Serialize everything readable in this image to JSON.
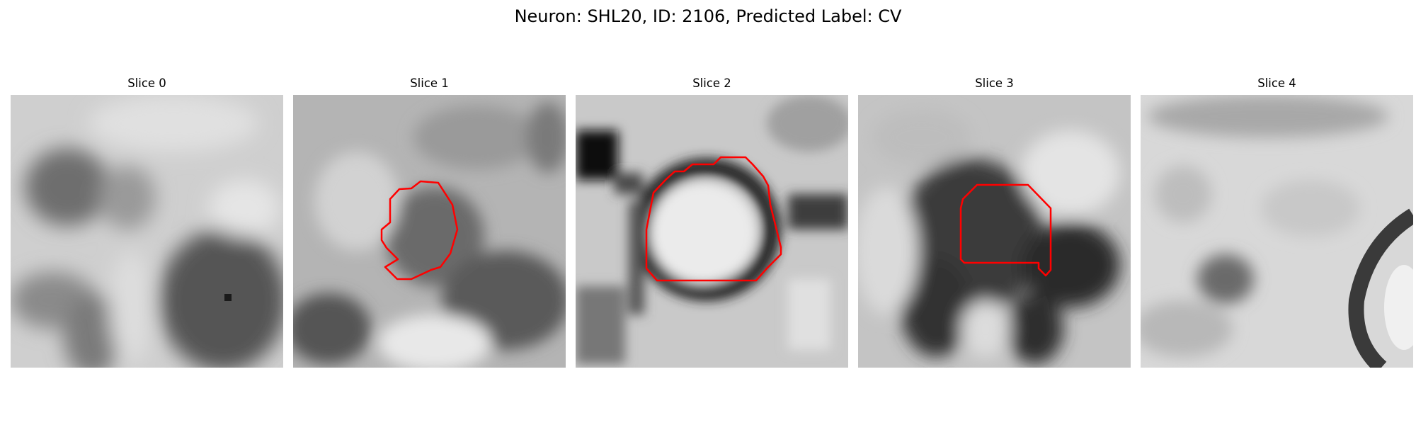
{
  "figure": {
    "title": "Neuron: SHL20, ID: 2106, Predicted Label: CV",
    "panels": [
      {
        "title": "Slice 0",
        "has_contour": false
      },
      {
        "title": "Slice 1",
        "has_contour": true
      },
      {
        "title": "Slice 2",
        "has_contour": true
      },
      {
        "title": "Slice 3",
        "has_contour": true
      },
      {
        "title": "Slice 4",
        "has_contour": false
      }
    ],
    "image_colormap": "gray",
    "contour_color": "#ff0000"
  }
}
